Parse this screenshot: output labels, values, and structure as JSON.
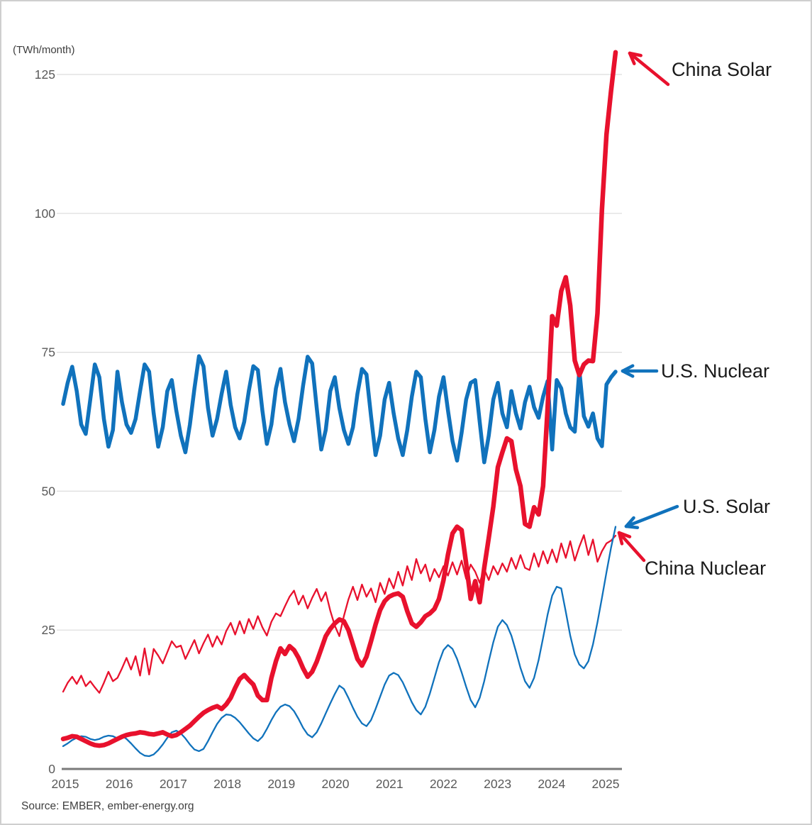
{
  "meta": {
    "unit_label": "(TWh/month)",
    "source_note": "Source: EMBER, ember-energy.org"
  },
  "chart_data": {
    "type": "line",
    "title": "",
    "x_axis": {
      "start": "2015-01",
      "end": "2025-03",
      "frequency": "monthly",
      "tick_labels": [
        "2015",
        "2016",
        "2017",
        "2018",
        "2019",
        "2020",
        "2021",
        "2022",
        "2023",
        "2024",
        "2025"
      ]
    },
    "y_axis": {
      "label": "(TWh/month)",
      "ticks": [
        0,
        25,
        50,
        75,
        100,
        125
      ],
      "ylim": [
        0,
        131
      ],
      "grid": "horizontal"
    },
    "colors": {
      "red": "#e8112d",
      "blue": "#1072bc",
      "grid": "#dcdcdc",
      "axis": "#7a7a7a",
      "tick_text": "#595959"
    },
    "legend_position": "annotated-arrows-right",
    "series": [
      {
        "name": "China Nuclear",
        "color": "#e8112d",
        "thickness": "thin",
        "values": [
          13.9,
          15.5,
          16.6,
          15.3,
          16.8,
          14.9,
          15.8,
          14.7,
          13.7,
          15.5,
          17.5,
          15.8,
          16.4,
          18.1,
          20.0,
          17.9,
          20.3,
          16.8,
          21.7,
          17.0,
          21.6,
          20.4,
          19.0,
          21.0,
          23.0,
          21.9,
          22.2,
          19.8,
          21.5,
          23.2,
          20.8,
          22.6,
          24.2,
          22.0,
          23.9,
          22.4,
          24.8,
          26.3,
          24.2,
          26.6,
          24.4,
          27.0,
          25.2,
          27.5,
          25.5,
          24.0,
          26.5,
          28.0,
          27.5,
          29.3,
          31.0,
          32.1,
          29.6,
          31.2,
          28.9,
          30.8,
          32.4,
          30.2,
          31.8,
          28.5,
          25.8,
          23.9,
          27.5,
          30.5,
          32.8,
          30.4,
          33.2,
          31.0,
          32.5,
          30.0,
          33.5,
          31.5,
          34.3,
          32.5,
          35.5,
          33.0,
          36.5,
          34.0,
          37.8,
          35.2,
          36.8,
          33.8,
          36.0,
          34.5,
          36.5,
          34.8,
          37.2,
          35.0,
          37.5,
          34.2,
          36.8,
          35.5,
          33.5,
          36.0,
          34.0,
          36.5,
          35.0,
          37.0,
          35.5,
          38.0,
          36.0,
          38.5,
          36.2,
          35.8,
          38.8,
          36.4,
          39.2,
          37.0,
          39.5,
          37.2,
          40.6,
          38.0,
          41.0,
          37.5,
          40.0,
          42.1,
          38.5,
          41.3,
          37.3,
          39.2,
          40.6,
          41.1,
          42.0
        ]
      },
      {
        "name": "U.S. Solar",
        "color": "#1072bc",
        "thickness": "thin",
        "values": [
          4.1,
          4.6,
          5.2,
          5.6,
          5.9,
          5.8,
          5.4,
          5.2,
          5.4,
          5.8,
          6.0,
          5.9,
          5.5,
          6.0,
          5.4,
          4.6,
          3.7,
          2.9,
          2.4,
          2.3,
          2.6,
          3.4,
          4.4,
          5.6,
          6.6,
          6.9,
          6.4,
          5.5,
          4.4,
          3.5,
          3.2,
          3.6,
          5.0,
          6.6,
          8.1,
          9.2,
          9.8,
          9.7,
          9.2,
          8.4,
          7.4,
          6.4,
          5.5,
          5.0,
          5.8,
          7.2,
          8.8,
          10.2,
          11.2,
          11.6,
          11.3,
          10.4,
          9.0,
          7.4,
          6.2,
          5.7,
          6.6,
          8.2,
          10.0,
          11.8,
          13.5,
          15.0,
          14.4,
          12.8,
          11.0,
          9.4,
          8.2,
          7.7,
          8.8,
          10.8,
          13.0,
          15.2,
          16.8,
          17.3,
          16.9,
          15.6,
          13.8,
          12.0,
          10.6,
          9.8,
          11.2,
          13.6,
          16.4,
          19.2,
          21.4,
          22.3,
          21.6,
          19.8,
          17.4,
          14.8,
          12.4,
          11.1,
          12.8,
          15.8,
          19.4,
          22.8,
          25.6,
          26.8,
          25.9,
          24.0,
          21.2,
          18.2,
          15.8,
          14.6,
          16.4,
          19.6,
          23.6,
          27.8,
          31.2,
          32.8,
          32.5,
          28.3,
          24.0,
          20.6,
          18.8,
          18.1,
          19.4,
          22.4,
          26.4,
          30.8,
          35.4,
          39.8,
          43.6
        ]
      },
      {
        "name": "U.S. Nuclear",
        "color": "#1072bc",
        "thickness": "thick",
        "values": [
          65.7,
          69.5,
          72.4,
          68.0,
          62.0,
          60.3,
          66.5,
          72.8,
          70.5,
          63.0,
          58.0,
          61.0,
          71.5,
          66.0,
          62.0,
          60.5,
          63.0,
          68.0,
          72.8,
          71.5,
          64.0,
          58.0,
          61.5,
          68.0,
          70.0,
          64.5,
          60.0,
          57.0,
          62.0,
          68.5,
          74.3,
          72.5,
          65.0,
          60.0,
          63.0,
          67.5,
          71.5,
          65.5,
          61.5,
          59.5,
          62.5,
          68.0,
          72.5,
          71.8,
          64.5,
          58.5,
          62.0,
          68.5,
          72.0,
          66.0,
          62.0,
          59.0,
          63.0,
          69.0,
          74.2,
          73.0,
          65.0,
          57.5,
          61.0,
          68.0,
          70.5,
          65.0,
          61.0,
          58.5,
          61.5,
          67.5,
          72.0,
          71.0,
          63.5,
          56.5,
          60.0,
          66.5,
          69.5,
          64.0,
          59.5,
          56.5,
          61.0,
          67.0,
          71.5,
          70.5,
          63.0,
          57.0,
          61.0,
          67.0,
          70.5,
          64.5,
          59.0,
          55.5,
          60.5,
          66.5,
          69.5,
          70.0,
          62.5,
          55.2,
          60.0,
          66.5,
          69.5,
          64.0,
          61.5,
          68.0,
          64.0,
          61.3,
          66.0,
          68.8,
          65.1,
          63.2,
          67.0,
          69.8,
          57.5,
          70.0,
          68.5,
          64.0,
          61.5,
          60.7,
          71.8,
          63.5,
          61.6,
          64.0,
          59.5,
          58.1,
          69.2,
          70.5,
          71.5
        ]
      },
      {
        "name": "China Solar",
        "color": "#e8112d",
        "thickness": "thick",
        "values": [
          5.4,
          5.6,
          5.9,
          5.8,
          5.4,
          5.0,
          4.6,
          4.3,
          4.2,
          4.3,
          4.6,
          5.0,
          5.4,
          5.8,
          6.1,
          6.3,
          6.4,
          6.6,
          6.5,
          6.3,
          6.2,
          6.4,
          6.6,
          6.2,
          5.9,
          6.1,
          6.6,
          7.2,
          7.8,
          8.6,
          9.4,
          10.1,
          10.6,
          11.0,
          11.3,
          10.8,
          11.6,
          12.8,
          14.6,
          16.2,
          16.9,
          16.0,
          15.2,
          13.2,
          12.4,
          12.4,
          16.4,
          19.4,
          21.7,
          20.7,
          22.1,
          21.4,
          20.0,
          18.1,
          16.6,
          17.5,
          19.3,
          21.6,
          23.9,
          25.2,
          26.2,
          26.9,
          26.6,
          25.0,
          22.4,
          19.8,
          18.6,
          20.2,
          23.0,
          26.0,
          28.6,
          30.2,
          31.0,
          31.4,
          31.6,
          31.0,
          28.4,
          26.2,
          25.6,
          26.4,
          27.5,
          28.0,
          28.8,
          30.6,
          34.0,
          38.6,
          42.4,
          43.6,
          43.0,
          37.0,
          30.6,
          33.8,
          30.0,
          36.2,
          41.6,
          47.2,
          54.3,
          57.0,
          59.5,
          59.0,
          53.9,
          50.9,
          44.1,
          43.6,
          47.1,
          45.8,
          50.9,
          65.0,
          81.5,
          79.8,
          86.0,
          88.5,
          83.4,
          73.5,
          70.9,
          72.8,
          73.5,
          73.4,
          82.0,
          100.7,
          114.2,
          122.0,
          129.0
        ]
      }
    ],
    "annotations": [
      {
        "label": "China Solar",
        "color": "#e8112d"
      },
      {
        "label": "U.S. Nuclear",
        "color": "#1072bc"
      },
      {
        "label": "U.S. Solar",
        "color": "#1072bc"
      },
      {
        "label": "China Nuclear",
        "color": "#e8112d"
      }
    ]
  }
}
